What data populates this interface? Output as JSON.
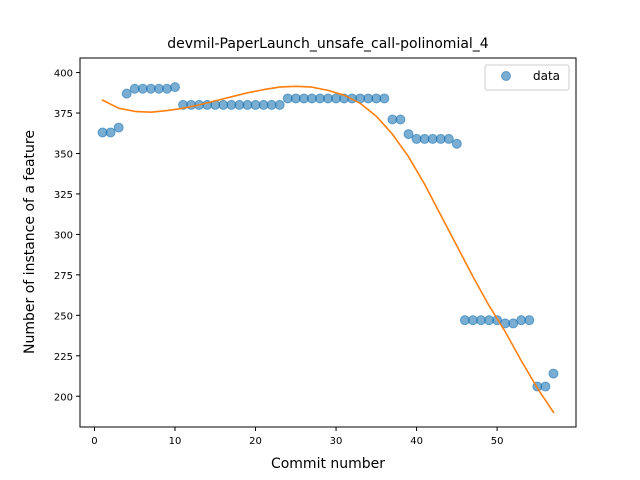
{
  "chart_data": {
    "type": "scatter",
    "title": "devmil-PaperLaunch_unsafe_call-polinomial_4",
    "xlabel": "Commit number",
    "ylabel": "Number of instance of a feature",
    "xlim": [
      -1.8,
      59.8
    ],
    "ylim": [
      181,
      409
    ],
    "xticks": [
      0,
      10,
      20,
      30,
      40,
      50
    ],
    "yticks": [
      200,
      225,
      250,
      275,
      300,
      325,
      350,
      375,
      400
    ],
    "grid": false,
    "legend_position": "top-right",
    "series": [
      {
        "name": "data",
        "kind": "scatter",
        "color": "#1f77b4",
        "x": [
          1,
          2,
          3,
          4,
          5,
          6,
          7,
          8,
          9,
          10,
          11,
          12,
          13,
          14,
          15,
          16,
          17,
          18,
          19,
          20,
          21,
          22,
          23,
          24,
          25,
          26,
          27,
          28,
          29,
          30,
          31,
          32,
          33,
          34,
          35,
          36,
          37,
          38,
          39,
          40,
          41,
          42,
          43,
          44,
          45,
          46,
          47,
          48,
          49,
          50,
          51,
          52,
          53,
          54,
          55,
          56,
          57
        ],
        "y": [
          363,
          363,
          366,
          387,
          390,
          390,
          390,
          390,
          390,
          391,
          380,
          380,
          380,
          380,
          380,
          380,
          380,
          380,
          380,
          380,
          380,
          380,
          380,
          384,
          384,
          384,
          384,
          384,
          384,
          384,
          384,
          384,
          384,
          384,
          384,
          384,
          371,
          371,
          362,
          359,
          359,
          359,
          359,
          359,
          356,
          247,
          247,
          247,
          247,
          247,
          245,
          245,
          247,
          247,
          206,
          206,
          214
        ]
      },
      {
        "name": "",
        "kind": "line",
        "color": "#ff7f0e",
        "x": [
          1,
          3,
          5,
          7,
          9,
          11,
          13,
          15,
          17,
          19,
          21,
          23,
          25,
          27,
          29,
          31,
          33,
          35,
          37,
          39,
          41,
          43,
          45,
          47,
          49,
          51,
          53,
          55,
          57
        ],
        "y": [
          383,
          378,
          376,
          375.5,
          376.5,
          378,
          380,
          382.5,
          385,
          387.5,
          389.5,
          391,
          391.5,
          391,
          389,
          386,
          381,
          373,
          362,
          348,
          331,
          312,
          293,
          274,
          256,
          240,
          222,
          205,
          190
        ]
      }
    ]
  }
}
